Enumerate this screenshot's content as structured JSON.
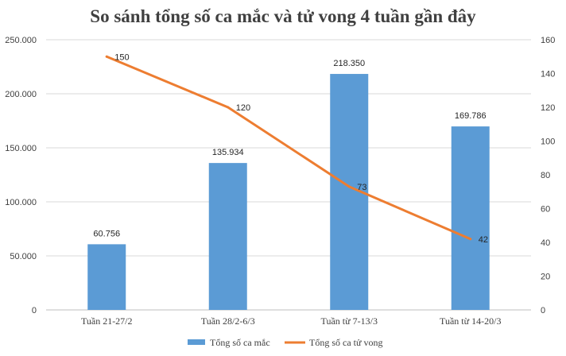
{
  "chart_data": {
    "type": "bar",
    "title": "So sánh tổng số ca mắc và tử vong 4 tuần gần đây",
    "categories": [
      "Tuần 21-27/2",
      "Tuần 28/2-6/3",
      "Tuần từ 7-13/3",
      "Tuần từ 14-20/3"
    ],
    "series": [
      {
        "name": "Tổng số ca mắc",
        "type": "bar",
        "axis": "left",
        "color": "#5b9bd5",
        "values": [
          60756,
          135934,
          218350,
          169786
        ],
        "labels": [
          "60.756",
          "135.934",
          "218.350",
          "169.786"
        ]
      },
      {
        "name": "Tổng số ca tử vong",
        "type": "line",
        "axis": "right",
        "color": "#ed7d31",
        "values": [
          150,
          120,
          73,
          42
        ],
        "labels": [
          "150",
          "120",
          "73",
          "42"
        ]
      }
    ],
    "y_left": {
      "range": [
        0,
        250000
      ],
      "ticks": [
        0,
        50000,
        100000,
        150000,
        200000,
        250000
      ],
      "tick_labels": [
        "0",
        "50.000",
        "100.000",
        "150.000",
        "200.000",
        "250.000"
      ]
    },
    "y_right": {
      "range": [
        0,
        160
      ],
      "ticks": [
        0,
        20,
        40,
        60,
        80,
        100,
        120,
        140,
        160
      ],
      "tick_labels": [
        "0",
        "20",
        "40",
        "60",
        "80",
        "100",
        "120",
        "140",
        "160"
      ]
    },
    "grid": true,
    "legend_position": "bottom"
  }
}
